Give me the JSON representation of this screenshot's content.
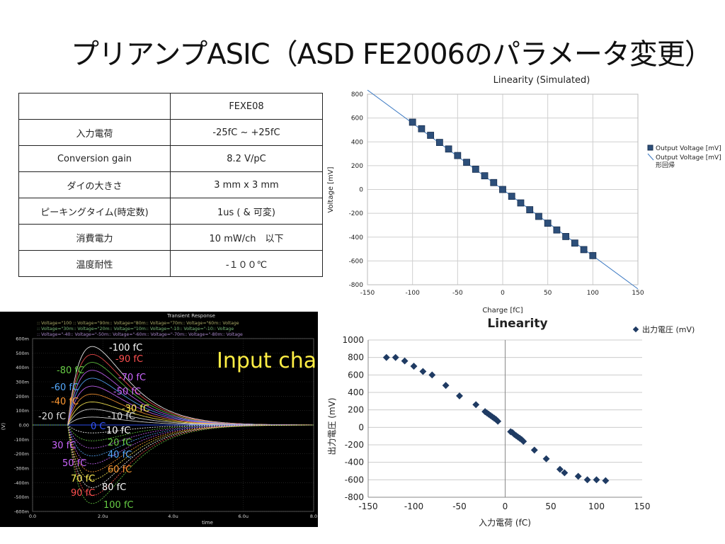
{
  "slide": {
    "title": "プリアンプASIC（ASD FE2006のパラメータ変更）"
  },
  "spec_table": {
    "header": [
      "",
      "FEXE08"
    ],
    "rows": [
      [
        "入力電荷",
        "-25fC ~ +25fC"
      ],
      [
        "Conversion gain",
        "8.2 V/pC"
      ],
      [
        "ダイの大きさ",
        "3 mm x 3 mm"
      ],
      [
        "ピーキングタイム(時定数)",
        "1us ( & 可変)"
      ],
      [
        "消費電力",
        "10 mW/ch　以下"
      ],
      [
        "温度耐性",
        "-１００℃"
      ]
    ]
  },
  "chart_data": [
    {
      "type": "scatter",
      "title": "Linearity (Simulated)",
      "xlabel": "Charge [fC]",
      "ylabel": "Voltage [mV]",
      "xlim": [
        -150,
        150
      ],
      "ylim": [
        -800,
        800
      ],
      "xticks": [
        -150,
        -100,
        -50,
        0,
        50,
        100,
        150
      ],
      "yticks": [
        -800,
        -600,
        -400,
        -200,
        0,
        200,
        400,
        600,
        800
      ],
      "grid": true,
      "legend_position": "right",
      "series": [
        {
          "name": "Output Voltage [mV]",
          "marker": "square",
          "color": "#2d4f7a",
          "x": [
            -100,
            -90,
            -80,
            -70,
            -60,
            -50,
            -40,
            -30,
            -20,
            -10,
            0,
            10,
            20,
            30,
            40,
            50,
            60,
            70,
            80,
            90,
            100
          ],
          "y": [
            565,
            510,
            455,
            395,
            340,
            285,
            228,
            170,
            115,
            58,
            0,
            -57,
            -113,
            -170,
            -226,
            -283,
            -340,
            -395,
            -450,
            -505,
            -555
          ]
        },
        {
          "name": "Output Voltage [mV]",
          "name_line2": "形回帰",
          "type": "line",
          "color": "#3a78c2",
          "x": [
            -150,
            150
          ],
          "y": [
            835,
            -835
          ]
        }
      ]
    },
    {
      "type": "line",
      "title": "Transient Response",
      "xlabel": "time",
      "ylabel": "(V)",
      "xticks": [
        "0.0",
        "2.0u",
        "4.0u",
        "6.0u",
        "8.0"
      ],
      "yticks": [
        "600m",
        "500m",
        "400m",
        "300m",
        "200m",
        "100m",
        "0.00",
        "-100m",
        "-200m",
        "-300m",
        "-400m",
        "-500m",
        "-600m"
      ],
      "overlay_text": "Input cha",
      "legend_rows": [
        ":: Voltage=\"100 :: Voltage=\"90m:: Voltage=\"80m:: Voltage=\"70m:: Voltage=\"60m:: Voltage",
        ":: Voltage=\"30m:: Voltage=\"20m:: Voltage=\"10m:: Voltage=\"-10:: Voltage=\"-10:: Voltage",
        ":: Voltage=\"-40:: Voltage=\"-50m:: Voltage=\"-60m:: Voltage=\"-70m:: Voltage=\"-80m:: Voltage"
      ],
      "labels": [
        {
          "text": "-100 fC",
          "color": "#ffffff"
        },
        {
          "text": "-90 fC",
          "color": "#ff5050"
        },
        {
          "text": "-80 fC",
          "color": "#66cc44"
        },
        {
          "text": "-70 fC",
          "color": "#cc66ff"
        },
        {
          "text": "-60 fC",
          "color": "#55aaff"
        },
        {
          "text": "-50 fC",
          "color": "#cc66ff"
        },
        {
          "text": "-40 fC",
          "color": "#ff9933"
        },
        {
          "text": "-30 fC",
          "color": "#ffee55"
        },
        {
          "text": "-20 fC",
          "color": "#dddddd"
        },
        {
          "text": "-10 fC",
          "color": "#dddddd"
        },
        {
          "text": "0 C",
          "color": "#3355ff"
        },
        {
          "text": "10 fC",
          "color": "#ffffff"
        },
        {
          "text": "20 fC",
          "color": "#66cc44"
        },
        {
          "text": "30 fC",
          "color": "#cc66ff"
        },
        {
          "text": "40 fC",
          "color": "#55aaff"
        },
        {
          "text": "50 fC",
          "color": "#cc66ff"
        },
        {
          "text": "60 fC",
          "color": "#ff9933"
        },
        {
          "text": "70 fC",
          "color": "#ffee55"
        },
        {
          "text": "80 fC",
          "color": "#ffffff"
        },
        {
          "text": "90 fC",
          "color": "#ff5050"
        },
        {
          "text": "100 fC",
          "color": "#66cc44"
        }
      ],
      "series": [
        {
          "charge_fc": -100,
          "peak_v": 0.545,
          "color": "#ffffff"
        },
        {
          "charge_fc": -90,
          "peak_v": 0.49,
          "color": "#ff5050"
        },
        {
          "charge_fc": -80,
          "peak_v": 0.435,
          "color": "#66cc44"
        },
        {
          "charge_fc": -70,
          "peak_v": 0.38,
          "color": "#cc66ff"
        },
        {
          "charge_fc": -60,
          "peak_v": 0.325,
          "color": "#55aaff"
        },
        {
          "charge_fc": -50,
          "peak_v": 0.27,
          "color": "#cc66ff"
        },
        {
          "charge_fc": -40,
          "peak_v": 0.215,
          "color": "#ff9933"
        },
        {
          "charge_fc": -30,
          "peak_v": 0.16,
          "color": "#ffee55"
        },
        {
          "charge_fc": -20,
          "peak_v": 0.11,
          "color": "#dddddd"
        },
        {
          "charge_fc": -10,
          "peak_v": 0.055,
          "color": "#dddddd"
        },
        {
          "charge_fc": 0,
          "peak_v": 0.0,
          "color": "#3355ff"
        },
        {
          "charge_fc": 10,
          "peak_v": -0.055,
          "color": "#ffffff"
        },
        {
          "charge_fc": 20,
          "peak_v": -0.11,
          "color": "#66cc44"
        },
        {
          "charge_fc": 30,
          "peak_v": -0.16,
          "color": "#cc66ff"
        },
        {
          "charge_fc": 40,
          "peak_v": -0.215,
          "color": "#55aaff"
        },
        {
          "charge_fc": 50,
          "peak_v": -0.27,
          "color": "#cc66ff"
        },
        {
          "charge_fc": 60,
          "peak_v": -0.325,
          "color": "#ff9933"
        },
        {
          "charge_fc": 70,
          "peak_v": -0.38,
          "color": "#ffee55"
        },
        {
          "charge_fc": 80,
          "peak_v": -0.435,
          "color": "#ffffff"
        },
        {
          "charge_fc": 90,
          "peak_v": -0.49,
          "color": "#ff5050"
        },
        {
          "charge_fc": 100,
          "peak_v": -0.545,
          "color": "#66cc44"
        }
      ]
    },
    {
      "type": "scatter",
      "title": "Linearity",
      "xlabel": "入力電荷 (fC)",
      "ylabel": "出力電圧 (mV)",
      "xlim": [
        -150,
        150
      ],
      "ylim": [
        -800,
        1000
      ],
      "xticks": [
        -150,
        -100,
        -50,
        0,
        50,
        100,
        150
      ],
      "yticks": [
        -800,
        -600,
        -400,
        -200,
        0,
        200,
        400,
        600,
        800,
        1000
      ],
      "grid": true,
      "legend_position": "top-right",
      "series": [
        {
          "name": "出力電圧 (mV)",
          "marker": "diamond",
          "color": "#1f3b63",
          "x": [
            -130,
            -120,
            -110,
            -100,
            -90,
            -80,
            -65,
            -50,
            -32,
            -22,
            -20,
            -18,
            -16,
            -14,
            -12,
            -10,
            -8,
            6,
            8,
            10,
            12,
            14,
            16,
            18,
            20,
            32,
            45,
            60,
            65,
            80,
            90,
            100,
            110
          ],
          "y": [
            800,
            800,
            760,
            700,
            640,
            600,
            480,
            360,
            260,
            180,
            165,
            150,
            135,
            120,
            105,
            90,
            70,
            -50,
            -60,
            -80,
            -95,
            -110,
            -125,
            -140,
            -160,
            -260,
            -360,
            -480,
            -520,
            -560,
            -600,
            -600,
            -610
          ]
        }
      ]
    }
  ]
}
